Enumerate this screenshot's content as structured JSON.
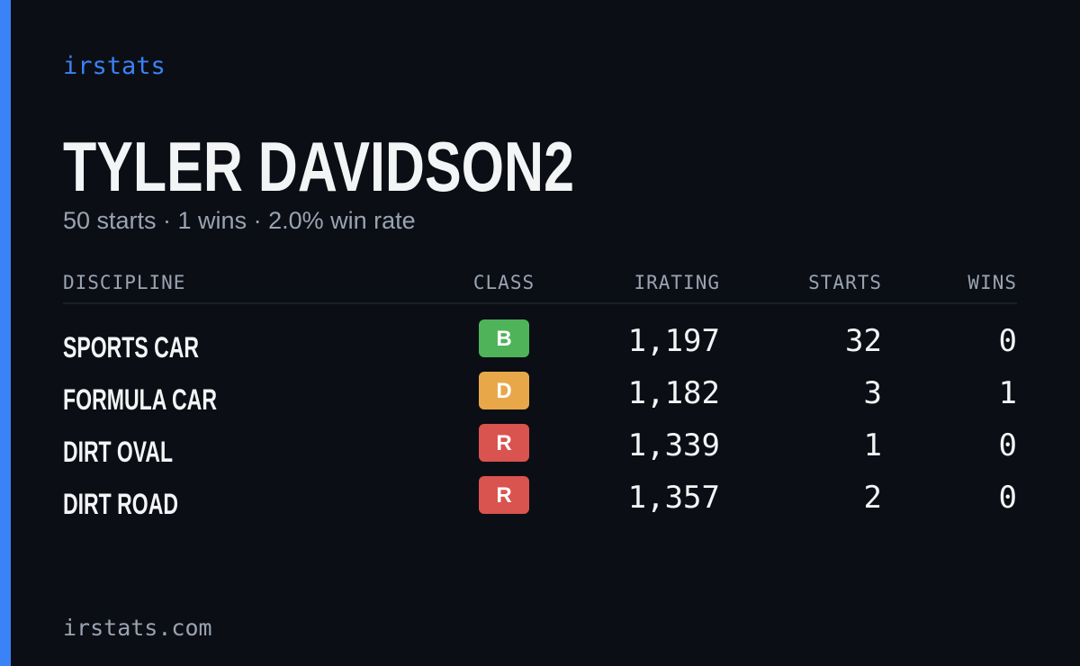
{
  "brand": "irstats",
  "player": {
    "name": "TYLER DAVIDSON2",
    "summary": "50 starts · 1 wins · 2.0% win rate"
  },
  "table": {
    "headers": [
      "DISCIPLINE",
      "CLASS",
      "IRATING",
      "STARTS",
      "WINS"
    ],
    "rows": [
      {
        "discipline": "SPORTS CAR",
        "class": "B",
        "class_color": "#4fb35a",
        "irating": "1,197",
        "starts": "32",
        "wins": "0"
      },
      {
        "discipline": "FORMULA CAR",
        "class": "D",
        "class_color": "#e8a84a",
        "irating": "1,182",
        "starts": "3",
        "wins": "1"
      },
      {
        "discipline": "DIRT OVAL",
        "class": "R",
        "class_color": "#d9534f",
        "irating": "1,339",
        "starts": "1",
        "wins": "0"
      },
      {
        "discipline": "DIRT ROAD",
        "class": "R",
        "class_color": "#d9534f",
        "irating": "1,357",
        "starts": "2",
        "wins": "0"
      }
    ]
  },
  "footer": "irstats.com"
}
